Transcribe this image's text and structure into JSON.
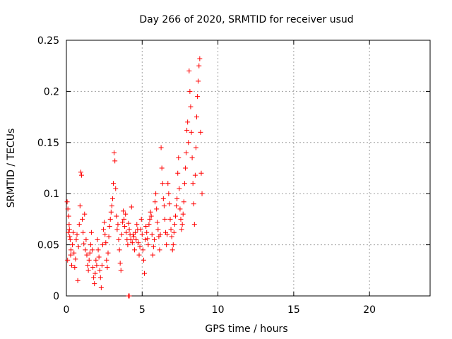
{
  "chart_data": {
    "type": "scatter",
    "title": "Day 266 of 2020, SRMTID for receiver usud",
    "xlabel": "GPS time / hours",
    "ylabel": "SRMTID / TECUs",
    "xlim": [
      0,
      24
    ],
    "ylim": [
      0,
      0.25
    ],
    "grid": true,
    "marker": "+",
    "color": "#ff0000",
    "x_ticks": [
      0,
      5,
      10,
      15,
      20
    ],
    "x_tick_labels": [
      "0",
      "5",
      "10",
      "15",
      "20"
    ],
    "y_ticks": [
      0,
      0.05,
      0.1,
      0.15,
      0.2,
      0.25
    ],
    "y_tick_labels": [
      "0",
      "0.05",
      "0.1",
      "0.15",
      "0.2",
      "0.25"
    ],
    "series": [
      {
        "name": "SRMTID",
        "points": [
          [
            0.05,
            0.092
          ],
          [
            0.1,
            0.085
          ],
          [
            0.15,
            0.078
          ],
          [
            0.2,
            0.065
          ],
          [
            0.25,
            0.055
          ],
          [
            0.3,
            0.045
          ],
          [
            0.08,
            0.035
          ],
          [
            0.12,
            0.062
          ],
          [
            0.18,
            0.07
          ],
          [
            0.22,
            0.058
          ],
          [
            0.28,
            0.04
          ],
          [
            0.35,
            0.03
          ],
          [
            0.4,
            0.05
          ],
          [
            0.45,
            0.062
          ],
          [
            0.5,
            0.042
          ],
          [
            0.55,
            0.028
          ],
          [
            0.6,
            0.036
          ],
          [
            0.65,
            0.055
          ],
          [
            0.7,
            0.06
          ],
          [
            0.75,
            0.015
          ],
          [
            0.8,
            0.048
          ],
          [
            0.85,
            0.07
          ],
          [
            0.9,
            0.088
          ],
          [
            0.95,
            0.121
          ],
          [
            1.0,
            0.118
          ],
          [
            1.05,
            0.075
          ],
          [
            1.1,
            0.062
          ],
          [
            1.15,
            0.051
          ],
          [
            1.2,
            0.08
          ],
          [
            1.25,
            0.045
          ],
          [
            1.3,
            0.055
          ],
          [
            1.35,
            0.04
          ],
          [
            1.4,
            0.03
          ],
          [
            1.45,
            0.025
          ],
          [
            1.5,
            0.035
          ],
          [
            1.55,
            0.042
          ],
          [
            1.6,
            0.05
          ],
          [
            1.65,
            0.062
          ],
          [
            1.7,
            0.045
          ],
          [
            1.75,
            0.028
          ],
          [
            1.8,
            0.018
          ],
          [
            1.85,
            0.012
          ],
          [
            1.9,
            0.022
          ],
          [
            1.95,
            0.035
          ],
          [
            2.0,
            0.03
          ],
          [
            2.05,
            0.055
          ],
          [
            2.1,
            0.045
          ],
          [
            2.15,
            0.038
          ],
          [
            2.2,
            0.025
          ],
          [
            2.25,
            0.018
          ],
          [
            2.3,
            0.008
          ],
          [
            2.35,
            0.03
          ],
          [
            2.4,
            0.05
          ],
          [
            2.45,
            0.065
          ],
          [
            2.5,
            0.072
          ],
          [
            2.55,
            0.06
          ],
          [
            2.6,
            0.052
          ],
          [
            2.65,
            0.035
          ],
          [
            2.7,
            0.028
          ],
          [
            2.75,
            0.042
          ],
          [
            2.8,
            0.058
          ],
          [
            2.85,
            0.068
          ],
          [
            2.9,
            0.075
          ],
          [
            2.95,
            0.082
          ],
          [
            3.0,
            0.088
          ],
          [
            3.05,
            0.095
          ],
          [
            3.1,
            0.11
          ],
          [
            3.15,
            0.14
          ],
          [
            3.2,
            0.132
          ],
          [
            3.25,
            0.105
          ],
          [
            3.3,
            0.078
          ],
          [
            3.35,
            0.065
          ],
          [
            3.4,
            0.07
          ],
          [
            3.45,
            0.055
          ],
          [
            3.5,
            0.045
          ],
          [
            3.55,
            0.032
          ],
          [
            3.6,
            0.025
          ],
          [
            3.65,
            0.06
          ],
          [
            3.7,
            0.072
          ],
          [
            3.75,
            0.083
          ],
          [
            3.8,
            0.075
          ],
          [
            3.85,
            0.068
          ],
          [
            3.9,
            0.08
          ],
          [
            3.95,
            0.062
          ],
          [
            4.0,
            0.055
          ],
          [
            4.05,
            0.05
          ],
          [
            4.1,
            0.071
          ],
          [
            4.15,
            0.065
          ],
          [
            4.2,
            0.06
          ],
          [
            4.25,
            0.055
          ],
          [
            4.3,
            0.087
          ],
          [
            4.35,
            0.052
          ],
          [
            4.4,
            0.06
          ],
          [
            4.45,
            0.058
          ],
          [
            4.5,
            0.045
          ],
          [
            4.55,
            0.062
          ],
          [
            4.6,
            0.055
          ],
          [
            4.65,
            0.07
          ],
          [
            4.7,
            0.065
          ],
          [
            4.75,
            0.052
          ],
          [
            4.8,
            0.04
          ],
          [
            4.85,
            0.048
          ],
          [
            4.9,
            0.065
          ],
          [
            4.95,
            0.075
          ],
          [
            5.0,
            0.06
          ],
          [
            5.05,
            0.045
          ],
          [
            5.1,
            0.035
          ],
          [
            5.15,
            0.022
          ],
          [
            5.2,
            0.055
          ],
          [
            5.25,
            0.068
          ],
          [
            5.3,
            0.062
          ],
          [
            5.35,
            0.056
          ],
          [
            5.4,
            0.05
          ],
          [
            5.45,
            0.07
          ],
          [
            5.5,
            0.075
          ],
          [
            5.55,
            0.082
          ],
          [
            5.6,
            0.078
          ],
          [
            5.65,
            0.06
          ],
          [
            5.7,
            0.04
          ],
          [
            5.75,
            0.048
          ],
          [
            5.8,
            0.055
          ],
          [
            5.85,
            0.092
          ],
          [
            5.9,
            0.1
          ],
          [
            5.95,
            0.085
          ],
          [
            6.0,
            0.072
          ],
          [
            6.05,
            0.065
          ],
          [
            6.1,
            0.058
          ],
          [
            6.15,
            0.045
          ],
          [
            6.2,
            0.06
          ],
          [
            6.25,
            0.145
          ],
          [
            6.3,
            0.125
          ],
          [
            6.35,
            0.11
          ],
          [
            6.4,
            0.095
          ],
          [
            6.45,
            0.088
          ],
          [
            6.5,
            0.075
          ],
          [
            6.55,
            0.062
          ],
          [
            6.6,
            0.05
          ],
          [
            6.65,
            0.06
          ],
          [
            6.7,
            0.11
          ],
          [
            6.75,
            0.1
          ],
          [
            6.8,
            0.09
          ],
          [
            6.85,
            0.075
          ],
          [
            6.9,
            0.065
          ],
          [
            6.95,
            0.058
          ],
          [
            7.0,
            0.045
          ],
          [
            7.05,
            0.05
          ],
          [
            7.1,
            0.062
          ],
          [
            7.15,
            0.07
          ],
          [
            7.2,
            0.078
          ],
          [
            7.25,
            0.088
          ],
          [
            7.3,
            0.095
          ],
          [
            7.35,
            0.12
          ],
          [
            7.4,
            0.135
          ],
          [
            7.45,
            0.105
          ],
          [
            7.5,
            0.085
          ],
          [
            7.55,
            0.075
          ],
          [
            7.6,
            0.065
          ],
          [
            7.65,
            0.07
          ],
          [
            7.7,
            0.08
          ],
          [
            7.75,
            0.092
          ],
          [
            7.8,
            0.11
          ],
          [
            7.85,
            0.125
          ],
          [
            7.9,
            0.14
          ],
          [
            7.95,
            0.162
          ],
          [
            8.0,
            0.17
          ],
          [
            8.05,
            0.15
          ],
          [
            8.1,
            0.22
          ],
          [
            8.15,
            0.2
          ],
          [
            8.2,
            0.185
          ],
          [
            8.25,
            0.16
          ],
          [
            8.3,
            0.135
          ],
          [
            8.35,
            0.11
          ],
          [
            8.4,
            0.09
          ],
          [
            8.45,
            0.07
          ],
          [
            8.5,
            0.118
          ],
          [
            8.55,
            0.145
          ],
          [
            8.6,
            0.175
          ],
          [
            8.65,
            0.195
          ],
          [
            8.7,
            0.21
          ],
          [
            8.75,
            0.225
          ],
          [
            8.8,
            0.232
          ],
          [
            8.85,
            0.16
          ],
          [
            8.9,
            0.12
          ],
          [
            8.95,
            0.1
          ],
          [
            4.1,
            0.0
          ],
          [
            4.15,
            0.0
          ]
        ]
      }
    ]
  }
}
